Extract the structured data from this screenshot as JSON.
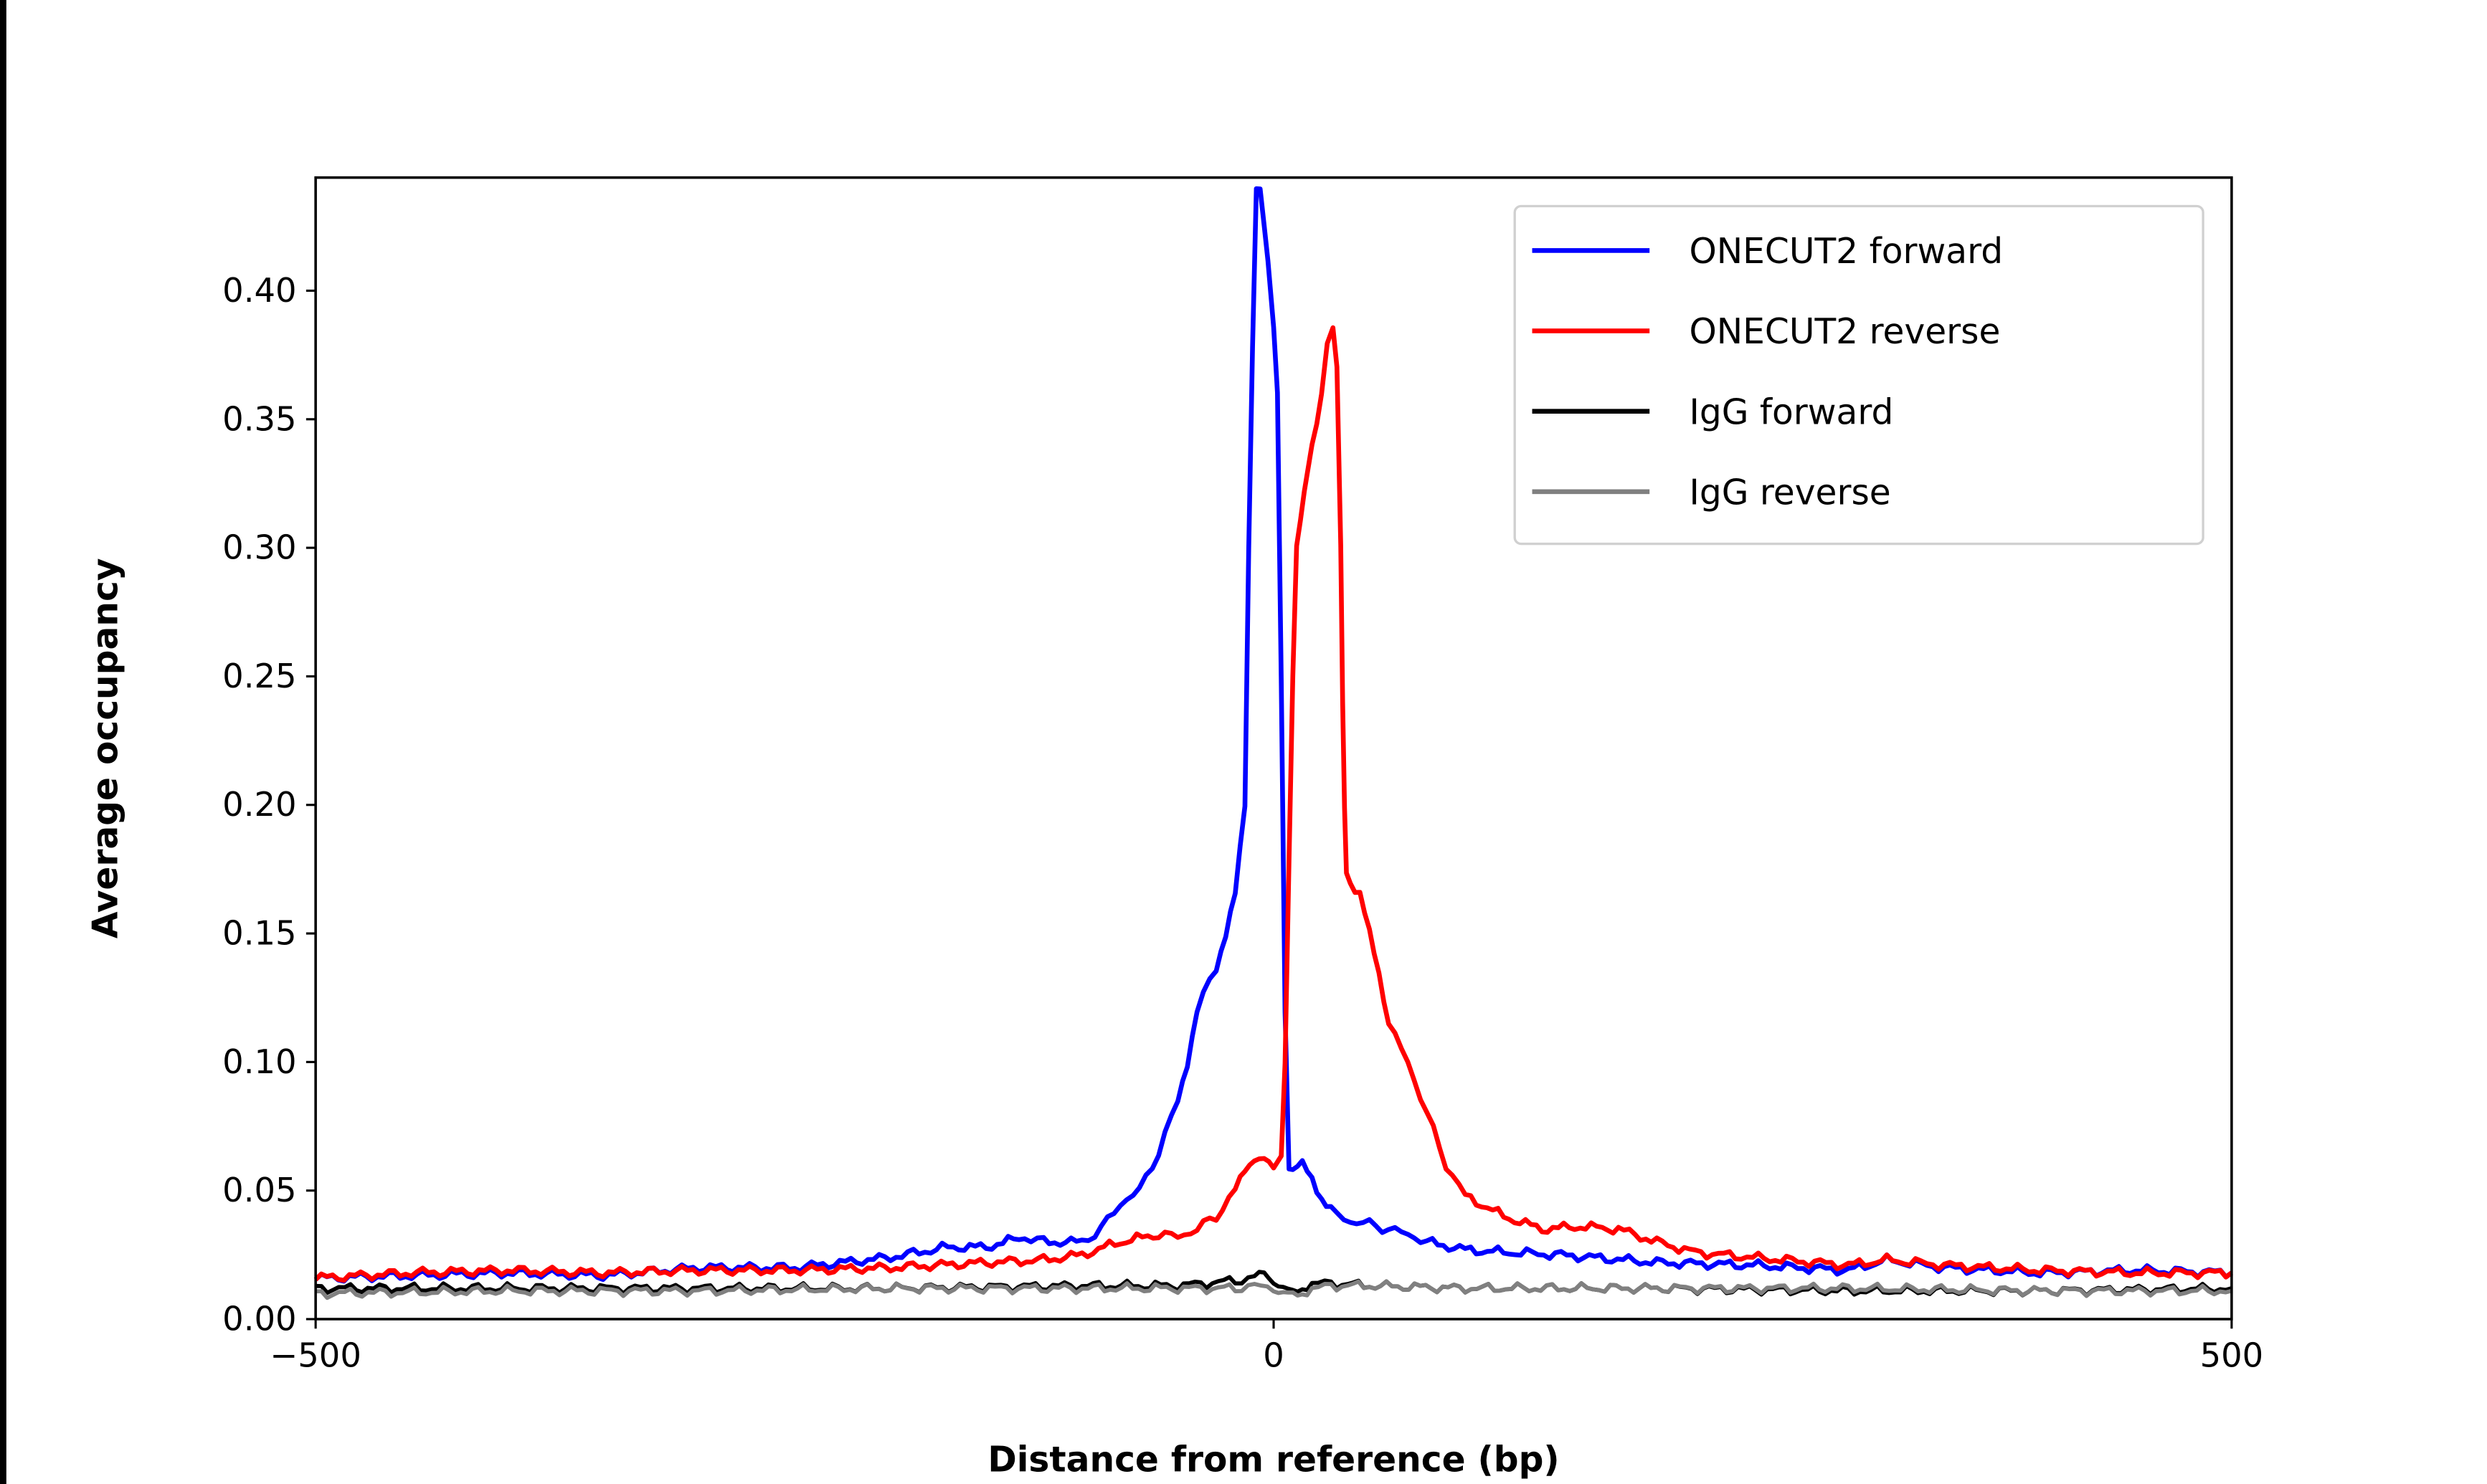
{
  "chart_data": {
    "type": "line",
    "title": "",
    "xlabel": "Distance from reference (bp)",
    "ylabel": "Average occupancy",
    "xlim": [
      -500,
      500
    ],
    "ylim": [
      0,
      0.444
    ],
    "xticks": [
      -500,
      0,
      500
    ],
    "xtick_labels": [
      "−500",
      "0",
      "500"
    ],
    "yticks": [
      0,
      0.05,
      0.1,
      0.15,
      0.2,
      0.25,
      0.3,
      0.35,
      0.4
    ],
    "ytick_labels": [
      "0.00",
      "0.05",
      "0.10",
      "0.15",
      "0.20",
      "0.25",
      "0.30",
      "0.35",
      "0.40"
    ],
    "grid": false,
    "legend_placement": "top-right",
    "series": [
      {
        "name": "ONECUT2 forward",
        "color": "#0000ff",
        "x": [
          -500,
          -450,
          -400,
          -350,
          -300,
          -250,
          -200,
          -170,
          -150,
          -130,
          -120,
          -100,
          -90,
          -80,
          -70,
          -60,
          -50,
          -45,
          -40,
          -30,
          -25,
          -20,
          -15,
          -13,
          -11,
          -9,
          -7,
          -5,
          -3,
          0,
          2,
          4,
          6,
          8,
          10,
          15,
          20,
          25,
          30,
          40,
          50,
          60,
          70,
          80,
          100,
          120,
          150,
          200,
          250,
          300,
          320,
          350,
          400,
          450,
          500
        ],
        "y": [
          0.016,
          0.017,
          0.018,
          0.017,
          0.02,
          0.02,
          0.024,
          0.028,
          0.028,
          0.032,
          0.03,
          0.03,
          0.035,
          0.045,
          0.05,
          0.065,
          0.085,
          0.1,
          0.12,
          0.137,
          0.15,
          0.165,
          0.2,
          0.3,
          0.38,
          0.44,
          0.44,
          0.425,
          0.41,
          0.385,
          0.36,
          0.25,
          0.12,
          0.06,
          0.058,
          0.06,
          0.055,
          0.047,
          0.042,
          0.038,
          0.037,
          0.035,
          0.033,
          0.03,
          0.027,
          0.026,
          0.025,
          0.022,
          0.021,
          0.019,
          0.023,
          0.02,
          0.018,
          0.019,
          0.018
        ]
      },
      {
        "name": "ONECUT2 reverse",
        "color": "#ff0000",
        "x": [
          -500,
          -450,
          -400,
          -350,
          -300,
          -250,
          -200,
          -150,
          -120,
          -100,
          -80,
          -60,
          -50,
          -40,
          -30,
          -20,
          -15,
          -10,
          -5,
          0,
          4,
          6,
          8,
          10,
          12,
          14,
          16,
          20,
          25,
          28,
          31,
          33,
          35,
          36,
          37,
          38,
          40,
          45,
          50,
          55,
          60,
          70,
          80,
          90,
          100,
          120,
          140,
          160,
          180,
          200,
          220,
          250,
          300,
          320,
          350,
          400,
          450,
          500
        ],
        "y": [
          0.016,
          0.018,
          0.019,
          0.018,
          0.019,
          0.019,
          0.02,
          0.022,
          0.023,
          0.025,
          0.03,
          0.033,
          0.032,
          0.035,
          0.04,
          0.05,
          0.058,
          0.063,
          0.062,
          0.058,
          0.065,
          0.1,
          0.18,
          0.25,
          0.3,
          0.31,
          0.32,
          0.34,
          0.36,
          0.38,
          0.384,
          0.37,
          0.3,
          0.24,
          0.2,
          0.175,
          0.17,
          0.165,
          0.15,
          0.135,
          0.115,
          0.1,
          0.08,
          0.06,
          0.048,
          0.04,
          0.035,
          0.036,
          0.035,
          0.03,
          0.026,
          0.024,
          0.021,
          0.023,
          0.021,
          0.019,
          0.018,
          0.018
        ]
      },
      {
        "name": "IgG forward",
        "color": "#000000",
        "x": [
          -500,
          -400,
          -300,
          -200,
          -100,
          -50,
          -20,
          -10,
          -5,
          0,
          5,
          10,
          15,
          20,
          30,
          50,
          100,
          200,
          300,
          400,
          500
        ],
        "y": [
          0.012,
          0.012,
          0.012,
          0.012,
          0.013,
          0.013,
          0.015,
          0.016,
          0.018,
          0.015,
          0.012,
          0.01,
          0.012,
          0.014,
          0.014,
          0.013,
          0.012,
          0.012,
          0.011,
          0.011,
          0.012
        ]
      },
      {
        "name": "IgG reverse",
        "color": "#808080",
        "x": [
          -500,
          -400,
          -300,
          -200,
          -100,
          -50,
          -20,
          -10,
          0,
          5,
          10,
          15,
          20,
          30,
          50,
          100,
          200,
          300,
          400,
          500
        ],
        "y": [
          0.01,
          0.011,
          0.011,
          0.012,
          0.012,
          0.012,
          0.012,
          0.013,
          0.012,
          0.01,
          0.009,
          0.01,
          0.012,
          0.013,
          0.013,
          0.012,
          0.012,
          0.012,
          0.011,
          0.011
        ]
      }
    ]
  }
}
